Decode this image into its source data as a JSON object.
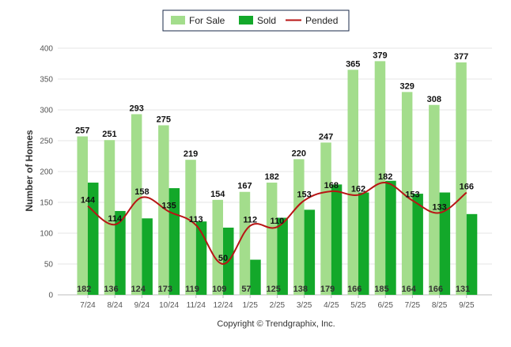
{
  "chart_data": {
    "type": "bar",
    "categories": [
      "7/24",
      "8/24",
      "9/24",
      "10/24",
      "11/24",
      "12/24",
      "1/25",
      "2/25",
      "3/25",
      "4/25",
      "5/25",
      "6/25",
      "7/25",
      "8/25",
      "9/25"
    ],
    "series": [
      {
        "name": "For Sale",
        "type": "bar",
        "color": "#a3dd8c",
        "values": [
          257,
          251,
          293,
          275,
          219,
          154,
          167,
          182,
          220,
          247,
          365,
          379,
          329,
          308,
          377
        ]
      },
      {
        "name": "Sold",
        "type": "bar",
        "color": "#13a82a",
        "values": [
          182,
          136,
          124,
          173,
          119,
          109,
          57,
          125,
          138,
          179,
          166,
          185,
          164,
          166,
          131
        ]
      },
      {
        "name": "Pended",
        "type": "line",
        "color": "#b81515",
        "values": [
          144,
          114,
          158,
          135,
          113,
          50,
          112,
          110,
          153,
          168,
          162,
          182,
          153,
          133,
          166
        ]
      }
    ],
    "ylabel": "Number of Homes",
    "xlabel": "",
    "ylim": [
      0,
      400
    ],
    "yticks": [
      0,
      50,
      100,
      150,
      200,
      250,
      300,
      350,
      400
    ],
    "legend_position": "top-center",
    "grid": true,
    "copyright": "Copyright © Trendgraphix, Inc."
  }
}
